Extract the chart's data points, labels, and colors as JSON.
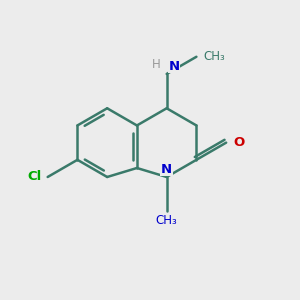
{
  "background_color": "#ececec",
  "bond_color": "#3a7a6a",
  "N_color": "#0000cc",
  "O_color": "#cc0000",
  "Cl_color": "#00aa00",
  "H_color": "#999999",
  "bond_width": 1.8,
  "figsize": [
    3.0,
    3.0
  ],
  "dpi": 100,
  "bbl": 0.105,
  "c8a": [
    0.46,
    0.445
  ],
  "c4a": [
    0.46,
    0.575
  ]
}
